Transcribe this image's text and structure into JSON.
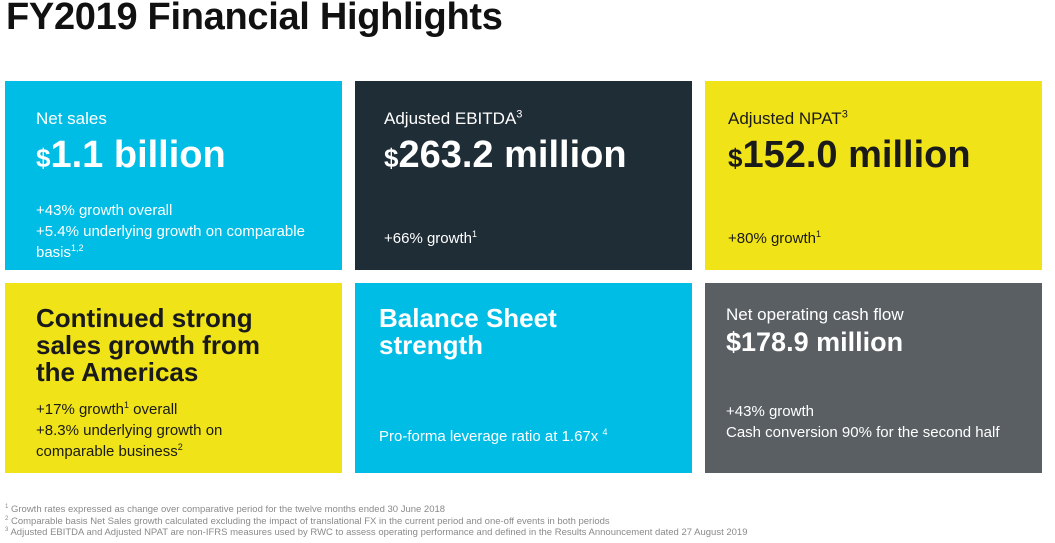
{
  "title": "FY2019 Financial Highlights",
  "tiles": {
    "net_sales": {
      "label": "Net sales",
      "currency": "$",
      "value": "1.1 billion",
      "line1": "+43% growth overall",
      "line2": "+5.4% underlying growth on comparable",
      "line3": "basis",
      "line3_sup": "1,2"
    },
    "ebitda": {
      "label": "Adjusted EBITDA",
      "label_sup": "3",
      "currency": "$",
      "value": "263.2 million",
      "growth": "+66% growth",
      "growth_sup": "1"
    },
    "npat": {
      "label": "Adjusted NPAT",
      "label_sup": "3",
      "currency": "$",
      "value": "152.0 million",
      "growth": "+80% growth",
      "growth_sup": "1"
    },
    "americas": {
      "heading": [
        "Continued strong",
        "sales growth from",
        "the Americas"
      ],
      "line1_a": "+17% growth",
      "line1_sup": "1",
      "line1_b": " overall",
      "line2": "+8.3% underlying growth on",
      "line3": "comparable business",
      "line3_sup": "2"
    },
    "balance": {
      "heading": [
        "Balance Sheet",
        "strength"
      ],
      "note": "Pro-forma leverage ratio at 1.67x ",
      "note_sup": "4"
    },
    "cashflow": {
      "label": "Net operating cash flow",
      "value": "$178.9 million",
      "line1": "+43% growth",
      "line2": "Cash conversion 90% for the second half"
    }
  },
  "footnotes": [
    {
      "num": "1",
      "text": " Growth rates expressed as change over comparative period for the twelve months ended 30 June 2018"
    },
    {
      "num": "2",
      "text": " Comparable basis Net Sales growth calculated excluding the impact of translational FX in the current period and one-off events in both periods"
    },
    {
      "num": "3",
      "text": " Adjusted EBITDA and Adjusted NPAT are non-IFRS measures used by RWC to assess operating performance and defined in the Results Announcement dated 27 August 2019"
    }
  ]
}
